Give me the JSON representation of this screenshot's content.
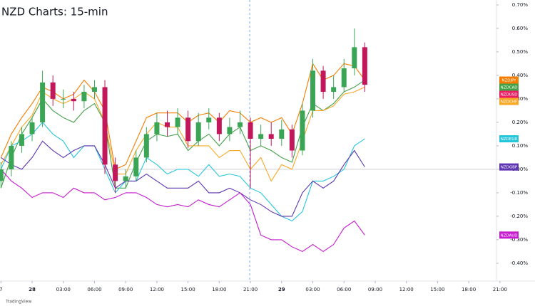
{
  "chart_data": {
    "type": "candlestick",
    "title": "NZD Charts: 15-min",
    "watermark": "TradingView",
    "x": [
      -3,
      -2,
      -1,
      0,
      1,
      2,
      3,
      4,
      5,
      6,
      7,
      8,
      9,
      10,
      11,
      12,
      13,
      14,
      15,
      16,
      17,
      18,
      19,
      20,
      21,
      22,
      23,
      24,
      25,
      26,
      27,
      28,
      29,
      30,
      31,
      32
    ],
    "ohlc": {
      "name": "NZDUSD",
      "color": "#e91e63",
      "up_color": "#3aa655",
      "down_color": "#c2185b",
      "open": [
        -0.05,
        0.0,
        0.1,
        0.15,
        0.2,
        0.37,
        0.3,
        0.3,
        0.29,
        0.33,
        0.35,
        0.02,
        -0.05,
        -0.03,
        0.05,
        0.15,
        0.2,
        0.18,
        0.22,
        0.12,
        0.2,
        0.22,
        0.15,
        0.18,
        0.2,
        0.13,
        0.15,
        0.13,
        0.17,
        0.08,
        0.25,
        0.42,
        0.33,
        0.35,
        0.43,
        0.52
      ],
      "high": [
        0.03,
        0.12,
        0.18,
        0.22,
        0.42,
        0.4,
        0.34,
        0.33,
        0.36,
        0.38,
        0.38,
        0.05,
        0.0,
        0.08,
        0.18,
        0.24,
        0.25,
        0.26,
        0.25,
        0.24,
        0.26,
        0.24,
        0.22,
        0.25,
        0.22,
        0.19,
        0.2,
        0.21,
        0.19,
        0.28,
        0.47,
        0.44,
        0.4,
        0.47,
        0.6,
        0.54
      ],
      "low": [
        -0.08,
        -0.03,
        0.07,
        0.12,
        0.18,
        0.27,
        0.26,
        0.25,
        0.26,
        0.3,
        -0.02,
        -0.1,
        -0.08,
        -0.05,
        0.03,
        0.12,
        0.14,
        0.15,
        0.09,
        0.1,
        0.17,
        0.12,
        0.12,
        0.15,
        -0.08,
        0.1,
        0.1,
        0.1,
        0.05,
        0.06,
        0.22,
        0.3,
        0.3,
        0.33,
        0.4,
        0.33
      ],
      "close": [
        0.0,
        0.1,
        0.15,
        0.2,
        0.37,
        0.3,
        0.3,
        0.29,
        0.33,
        0.35,
        0.02,
        -0.05,
        -0.03,
        0.05,
        0.15,
        0.2,
        0.18,
        0.22,
        0.12,
        0.2,
        0.22,
        0.15,
        0.18,
        0.2,
        0.13,
        0.15,
        0.13,
        0.17,
        0.08,
        0.25,
        0.42,
        0.33,
        0.35,
        0.43,
        0.52,
        0.36
      ]
    },
    "series": [
      {
        "name": "NZDJPY",
        "color": "#f57c00",
        "values": [
          0.05,
          0.15,
          0.22,
          0.28,
          0.35,
          0.33,
          0.3,
          0.32,
          0.38,
          0.33,
          0.25,
          0.0,
          0.02,
          0.12,
          0.22,
          0.24,
          0.24,
          0.24,
          0.2,
          0.23,
          0.24,
          0.2,
          0.25,
          0.24,
          0.2,
          0.22,
          0.2,
          0.22,
          0.15,
          0.28,
          0.45,
          0.38,
          0.4,
          0.45,
          0.44,
          0.38
        ]
      },
      {
        "name": "NZDCAD",
        "color": "#43a047",
        "values": [
          -0.08,
          0.05,
          0.15,
          0.22,
          0.3,
          0.25,
          0.22,
          0.2,
          0.25,
          0.28,
          0.2,
          -0.08,
          -0.08,
          0.03,
          0.12,
          0.15,
          0.14,
          0.15,
          0.08,
          0.12,
          0.15,
          0.1,
          0.15,
          0.18,
          0.08,
          0.1,
          0.08,
          0.05,
          0.03,
          0.18,
          0.28,
          0.25,
          0.28,
          0.33,
          0.35,
          0.38
        ]
      },
      {
        "name": "NZDCHF",
        "color": "#f9a825",
        "values": [
          0.02,
          0.1,
          0.18,
          0.23,
          0.33,
          0.3,
          0.28,
          0.3,
          0.33,
          0.3,
          0.2,
          -0.02,
          -0.02,
          0.08,
          0.15,
          0.2,
          0.18,
          0.18,
          0.1,
          0.1,
          0.1,
          0.05,
          0.08,
          0.08,
          0.0,
          0.05,
          -0.05,
          0.02,
          0.0,
          0.12,
          0.25,
          0.25,
          0.27,
          0.32,
          0.33,
          0.35
        ]
      },
      {
        "name": "NZDEUR",
        "color": "#26c6da",
        "values": [
          0.0,
          0.1,
          0.12,
          0.15,
          0.2,
          0.15,
          0.12,
          0.05,
          0.1,
          0.1,
          0.0,
          -0.1,
          -0.05,
          -0.05,
          0.05,
          0.02,
          -0.02,
          0.0,
          0.0,
          -0.03,
          0.02,
          -0.03,
          -0.02,
          -0.03,
          -0.08,
          -0.1,
          -0.15,
          -0.2,
          -0.22,
          -0.18,
          -0.05,
          -0.05,
          -0.03,
          0.0,
          0.1,
          0.13
        ]
      },
      {
        "name": "NZDGBP",
        "color": "#5e35b1",
        "values": [
          0.05,
          0.02,
          0.0,
          0.05,
          0.12,
          0.08,
          0.05,
          0.08,
          0.1,
          0.1,
          0.02,
          -0.08,
          -0.05,
          -0.05,
          -0.02,
          -0.05,
          -0.08,
          -0.08,
          -0.08,
          -0.05,
          -0.1,
          -0.1,
          -0.08,
          -0.1,
          -0.13,
          -0.15,
          -0.18,
          -0.2,
          -0.2,
          -0.1,
          -0.05,
          -0.08,
          -0.05,
          0.02,
          0.08,
          0.01
        ]
      },
      {
        "name": "NZDAUD",
        "color": "#c51ccf",
        "values": [
          0.0,
          -0.05,
          -0.08,
          -0.12,
          -0.1,
          -0.1,
          -0.12,
          -0.08,
          -0.1,
          -0.1,
          -0.13,
          -0.12,
          -0.1,
          -0.1,
          -0.12,
          -0.15,
          -0.16,
          -0.15,
          -0.16,
          -0.13,
          -0.15,
          -0.16,
          -0.13,
          -0.1,
          -0.15,
          -0.28,
          -0.3,
          -0.3,
          -0.33,
          -0.35,
          -0.32,
          -0.35,
          -0.32,
          -0.25,
          -0.22,
          -0.28
        ]
      }
    ],
    "xlim": [
      -3.09,
      44.6
    ],
    "xticks": [
      {
        "value": -3,
        "label": "7"
      },
      {
        "value": 0,
        "label": "28"
      },
      {
        "value": 3,
        "label": "03:00"
      },
      {
        "value": 6,
        "label": "06:00"
      },
      {
        "value": 9,
        "label": "09:00"
      },
      {
        "value": 12,
        "label": "12:00"
      },
      {
        "value": 15,
        "label": "15:00"
      },
      {
        "value": 18,
        "label": "18:00"
      },
      {
        "value": 21,
        "label": "21:00"
      },
      {
        "value": 24,
        "label": "29"
      },
      {
        "value": 27,
        "label": "03:00"
      },
      {
        "value": 30,
        "label": "06:00"
      },
      {
        "value": 33,
        "label": "09:00"
      },
      {
        "value": 36,
        "label": "12:00"
      },
      {
        "value": 39,
        "label": "15:00"
      },
      {
        "value": 42,
        "label": "18:00"
      },
      {
        "value": 45,
        "label": "21:00"
      }
    ],
    "ylim": [
      -0.476,
      0.721
    ],
    "yticks": [
      {
        "value": 0.7,
        "label": "0.70%"
      },
      {
        "value": 0.6,
        "label": "0.60%"
      },
      {
        "value": 0.5,
        "label": "0.50%"
      },
      {
        "value": 0.4,
        "label": "0.40%"
      },
      {
        "value": 0.3,
        "label": "0.30%"
      },
      {
        "value": 0.2,
        "label": "0.20%"
      },
      {
        "value": 0.1,
        "label": "0.10%"
      },
      {
        "value": 0.0,
        "label": "0.00%"
      },
      {
        "value": -0.1,
        "label": "-0.10%"
      },
      {
        "value": -0.2,
        "label": "-0.20%"
      },
      {
        "value": -0.3,
        "label": "-0.30%"
      },
      {
        "value": -0.4,
        "label": "-0.40%"
      }
    ]
  }
}
